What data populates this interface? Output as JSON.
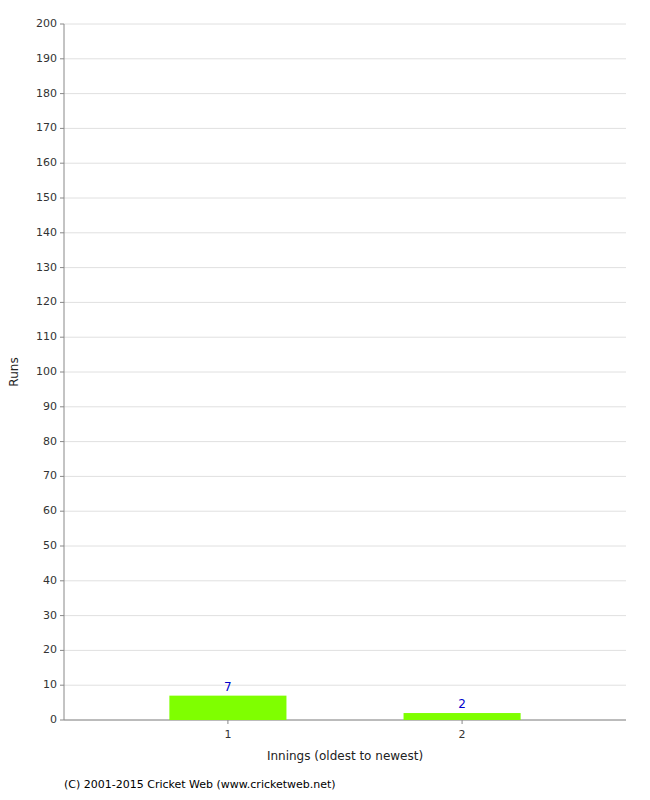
{
  "chart_data": {
    "type": "bar",
    "x": [
      1,
      2
    ],
    "values": [
      7,
      2
    ],
    "color": "#7FFF00",
    "xlabel": "Innings (oldest to newest)",
    "ylabel": "Runs",
    "xlim": [
      0.3,
      2.7
    ],
    "xticks": [
      1,
      2
    ],
    "ylim": [
      0,
      200
    ],
    "yticks": [
      0,
      10,
      20,
      30,
      40,
      50,
      60,
      70,
      80,
      90,
      100,
      110,
      120,
      130,
      140,
      150,
      160,
      170,
      180,
      190,
      200
    ],
    "grid": true,
    "data_labels": true,
    "annotations": [
      "(C) 2001-2015 Cricket Web (www.cricketweb.net)"
    ]
  }
}
